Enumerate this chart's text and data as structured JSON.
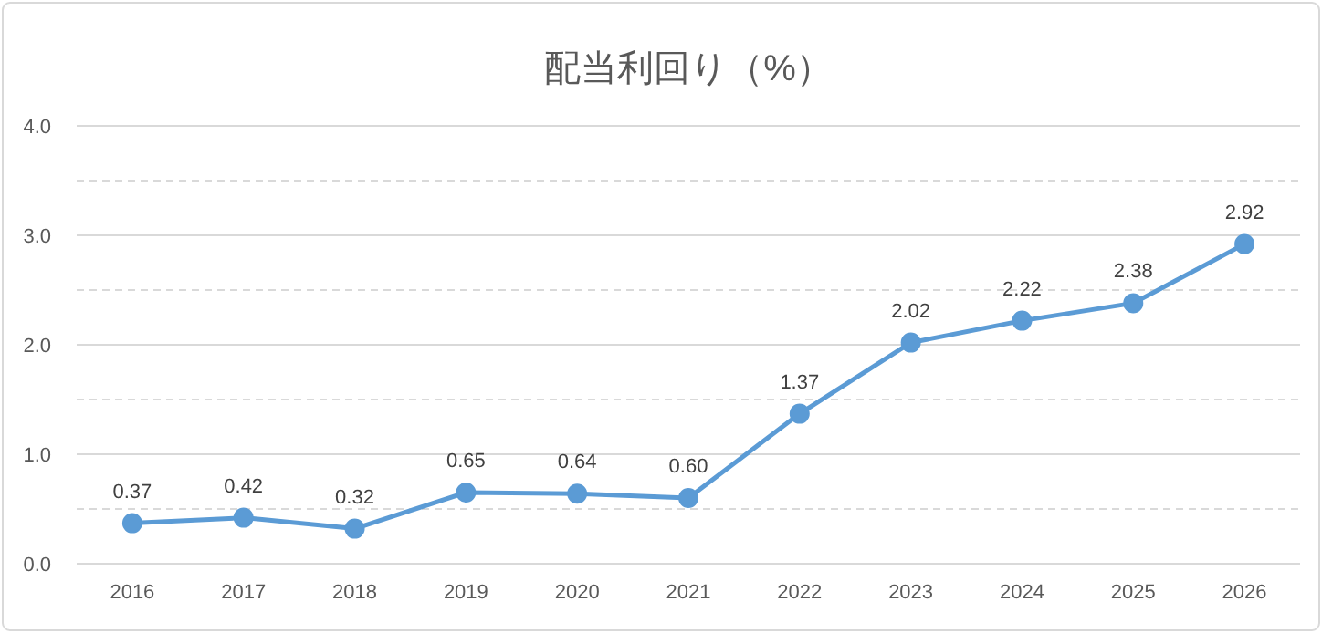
{
  "chart_data": {
    "type": "line",
    "title": "配当利回り（%）",
    "categories": [
      "2016",
      "2017",
      "2018",
      "2019",
      "2020",
      "2021",
      "2022",
      "2023",
      "2024",
      "2025",
      "2026"
    ],
    "series": [
      {
        "color": "#5b9bd5",
        "values": [
          0.37,
          0.42,
          0.32,
          0.65,
          0.64,
          0.6,
          1.37,
          2.02,
          2.22,
          2.38,
          2.92
        ],
        "value_labels": [
          "0.37",
          "0.42",
          "0.32",
          "0.65",
          "0.64",
          "0.60",
          "1.37",
          "2.02",
          "2.22",
          "2.38",
          "2.92"
        ]
      }
    ],
    "ylim": [
      0,
      4
    ],
    "yticks": [
      {
        "value": 0,
        "label": "0.0"
      },
      {
        "value": 0.5,
        "label": null
      },
      {
        "value": 1,
        "label": "1.0"
      },
      {
        "value": 1.5,
        "label": null
      },
      {
        "value": 2,
        "label": "2.0"
      },
      {
        "value": 2.5,
        "label": null
      },
      {
        "value": 3,
        "label": "3.0"
      },
      {
        "value": 3.5,
        "label": null
      },
      {
        "value": 4,
        "label": "4.0"
      }
    ],
    "grid": "y",
    "marker": "circle",
    "line_style": "solid"
  }
}
